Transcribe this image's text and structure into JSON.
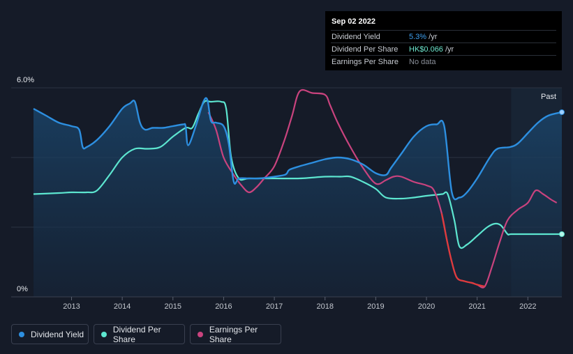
{
  "tooltip": {
    "date": "Sep 02 2022",
    "rows": [
      {
        "label": "Dividend Yield",
        "value": "5.3%",
        "unit": " /yr"
      },
      {
        "label": "Dividend Per Share",
        "value": "HK$0.066",
        "unit": " /yr"
      },
      {
        "label": "Earnings Per Share",
        "value": "No data",
        "unit": ""
      }
    ]
  },
  "legend": {
    "items": [
      {
        "label": "Dividend Yield",
        "color": "#2d8fe0"
      },
      {
        "label": "Dividend Per Share",
        "color": "#5de6d0"
      },
      {
        "label": "Earnings Per Share",
        "color": "#c9437e"
      }
    ]
  },
  "past_label": "Past",
  "colors": {
    "background": "#151b28",
    "dividend_yield": "#2d8fe0",
    "dividend_per_share": "#5de6d0",
    "earnings_per_share": "#c9437e",
    "earnings_negative": "#e03b3b"
  },
  "chart_data": {
    "type": "line",
    "title": "",
    "xlabel": "",
    "ylabel": "",
    "xlim": [
      2012.25,
      2022.67
    ],
    "ylim": [
      0,
      6.0
    ],
    "y_tick_labels": [
      "6.0%",
      "0%"
    ],
    "x_ticks": [
      2013,
      2014,
      2015,
      2016,
      2017,
      2018,
      2019,
      2020,
      2021,
      2022
    ],
    "x_tick_labels": [
      "2013",
      "2014",
      "2015",
      "2016",
      "2017",
      "2018",
      "2019",
      "2020",
      "2021",
      "2022"
    ],
    "forecast_start": 2021.67,
    "series": [
      {
        "name": "Dividend Yield",
        "unit": "%",
        "x": [
          2012.25,
          2012.5,
          2012.75,
          2013.0,
          2013.15,
          2013.22,
          2013.3,
          2013.5,
          2013.75,
          2014.0,
          2014.15,
          2014.25,
          2014.35,
          2014.45,
          2014.6,
          2014.8,
          2015.0,
          2015.2,
          2015.25,
          2015.3,
          2015.45,
          2015.6,
          2015.68,
          2015.75,
          2015.85,
          2016.0,
          2016.1,
          2016.2,
          2016.3,
          2016.5,
          2016.7,
          2017.0,
          2017.2,
          2017.25,
          2017.3,
          2017.5,
          2017.75,
          2018.0,
          2018.25,
          2018.5,
          2018.75,
          2019.0,
          2019.2,
          2019.3,
          2019.5,
          2019.75,
          2020.0,
          2020.2,
          2020.35,
          2020.5,
          2020.65,
          2020.8,
          2021.0,
          2021.25,
          2021.4,
          2021.65,
          2021.8,
          2022.0,
          2022.2,
          2022.4,
          2022.67
        ],
        "values": [
          5.4,
          5.2,
          5.0,
          4.9,
          4.8,
          4.3,
          4.3,
          4.5,
          4.9,
          5.4,
          5.55,
          5.6,
          5.0,
          4.8,
          4.85,
          4.85,
          4.9,
          4.95,
          4.9,
          4.35,
          4.9,
          5.6,
          5.65,
          5.05,
          5.0,
          4.9,
          4.4,
          3.3,
          3.4,
          3.4,
          3.4,
          3.45,
          3.5,
          3.55,
          3.65,
          3.75,
          3.85,
          3.95,
          4.0,
          3.95,
          3.8,
          3.55,
          3.5,
          3.7,
          4.1,
          4.6,
          4.9,
          4.95,
          4.9,
          3.0,
          2.85,
          3.0,
          3.4,
          4.0,
          4.25,
          4.3,
          4.4,
          4.7,
          5.0,
          5.2,
          5.3
        ]
      },
      {
        "name": "Dividend Per Share",
        "unit": "relative",
        "x": [
          2012.25,
          2012.75,
          2013.0,
          2013.3,
          2013.5,
          2013.75,
          2014.0,
          2014.25,
          2014.5,
          2014.75,
          2015.0,
          2015.25,
          2015.38,
          2015.5,
          2015.62,
          2015.75,
          2015.95,
          2016.05,
          2016.15,
          2016.3,
          2016.5,
          2017.0,
          2017.5,
          2018.0,
          2018.3,
          2018.5,
          2018.75,
          2019.0,
          2019.2,
          2019.5,
          2019.75,
          2020.0,
          2020.2,
          2020.32,
          2020.42,
          2020.55,
          2020.65,
          2020.8,
          2021.0,
          2021.2,
          2021.35,
          2021.47,
          2021.6,
          2021.67,
          2022.0,
          2022.3,
          2022.67
        ],
        "values": [
          2.95,
          2.98,
          3.0,
          3.0,
          3.05,
          3.5,
          4.0,
          4.25,
          4.25,
          4.3,
          4.6,
          4.85,
          4.85,
          5.25,
          5.6,
          5.6,
          5.6,
          5.4,
          4.0,
          3.4,
          3.4,
          3.4,
          3.4,
          3.45,
          3.45,
          3.45,
          3.3,
          3.1,
          2.85,
          2.82,
          2.85,
          2.9,
          2.93,
          2.95,
          2.95,
          2.2,
          1.45,
          1.5,
          1.75,
          2.0,
          2.1,
          2.05,
          1.8,
          1.8,
          1.8,
          1.8,
          1.8
        ]
      },
      {
        "name": "Earnings Per Share",
        "unit": "relative",
        "x": [
          2015.7,
          2015.85,
          2016.0,
          2016.2,
          2016.35,
          2016.5,
          2016.65,
          2016.8,
          2017.0,
          2017.2,
          2017.35,
          2017.5,
          2017.75,
          2018.0,
          2018.1,
          2018.25,
          2018.5,
          2018.75,
          2019.0,
          2019.2,
          2019.35,
          2019.5,
          2019.75,
          2020.0,
          2020.15,
          2020.3,
          2020.4,
          2020.5,
          2020.6,
          2020.75,
          2020.9,
          2021.0,
          2021.15,
          2021.3,
          2021.45,
          2021.6,
          2021.8,
          2022.0,
          2022.15,
          2022.3,
          2022.45,
          2022.57
        ],
        "values": [
          5.3,
          4.8,
          4.0,
          3.5,
          3.2,
          3.0,
          3.15,
          3.4,
          3.75,
          4.5,
          5.2,
          5.9,
          5.85,
          5.8,
          5.5,
          5.0,
          4.3,
          3.7,
          3.25,
          3.35,
          3.45,
          3.45,
          3.3,
          3.2,
          3.05,
          2.4,
          1.65,
          1.0,
          0.55,
          0.45,
          0.4,
          0.35,
          0.3,
          0.9,
          1.6,
          2.2,
          2.5,
          2.7,
          3.05,
          2.95,
          2.8,
          2.7
        ]
      }
    ]
  }
}
